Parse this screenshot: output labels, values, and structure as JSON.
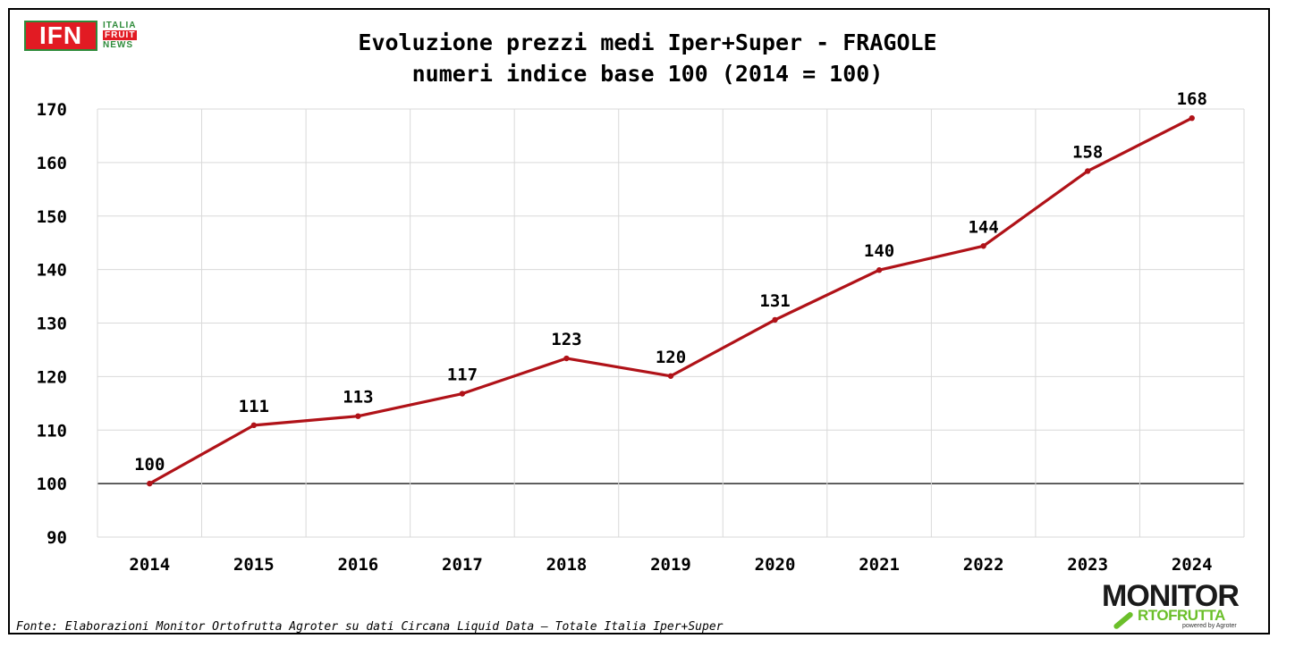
{
  "logos": {
    "ifn": {
      "main": "IFN",
      "line1": "ITALIA",
      "line2": "FRUIT",
      "line3": "NEWS"
    },
    "monitor": {
      "top": "MONITOR",
      "bottom": "RTOFRUTTA",
      "small": "powered by Agroter"
    }
  },
  "colors": {
    "line": "#b01218",
    "grid": "#d9d9d9",
    "baseline": "#000000",
    "text": "#000000"
  },
  "source": "Fonte: Elaborazioni Monitor Ortofrutta Agroter su dati Circana Liquid Data – Totale Italia Iper+Super",
  "chart_data": {
    "type": "line",
    "title": "Evoluzione prezzi medi Iper+Super - FRAGOLE",
    "subtitle": "numeri indice base 100 (2014 = 100)",
    "xlabel": "",
    "ylabel": "",
    "categories": [
      "2014",
      "2015",
      "2016",
      "2017",
      "2018",
      "2019",
      "2020",
      "2021",
      "2022",
      "2023",
      "2024"
    ],
    "series": [
      {
        "values": [
          100,
          110.9,
          112.6,
          116.8,
          123.4,
          120.1,
          130.6,
          139.9,
          144.4,
          158.4,
          168.3
        ],
        "labels": [
          "100",
          "111",
          "113",
          "117",
          "123",
          "120",
          "131",
          "140",
          "144",
          "158",
          "168"
        ]
      }
    ],
    "ylim": [
      90,
      170
    ],
    "yticks": [
      90,
      100,
      110,
      120,
      130,
      140,
      150,
      160,
      170
    ],
    "reference_line": 100,
    "grid": true,
    "legend": "none"
  }
}
